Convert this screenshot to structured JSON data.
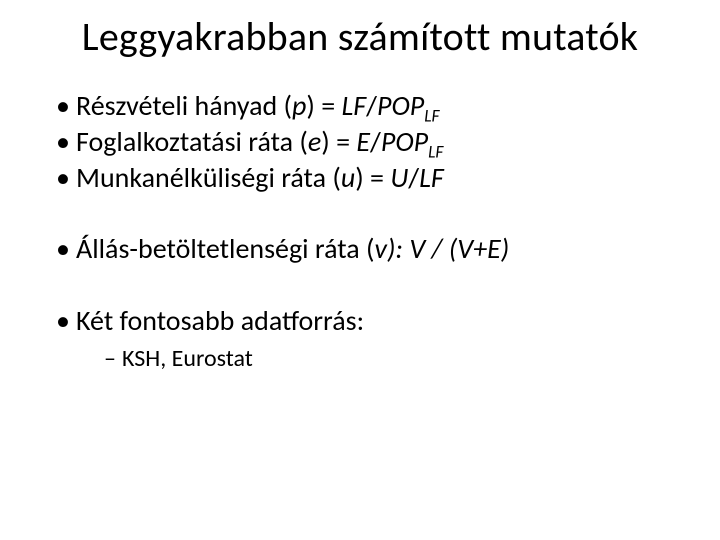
{
  "title": "Leggyakrabban számított mutatók",
  "bullets": {
    "b1_pre": "Részvételi hányad (",
    "b1_var": "p",
    "b1_mid1": ") = ",
    "b1_lf": "LF",
    "b1_slash": "/",
    "b1_pop": "POP",
    "b1_sub": "LF",
    "b2_pre": "Foglalkoztatási ráta (",
    "b2_var": "e",
    "b2_mid1": ") = ",
    "b2_e": "E",
    "b2_slash": "/",
    "b2_pop": "POP",
    "b2_sub": "LF",
    "b3_pre": "Munkanélküliségi ráta (",
    "b3_var": "u",
    "b3_mid1": ") = ",
    "b3_u": "U",
    "b3_slash": "/",
    "b3_lf": "LF",
    "b4_pre": "Állás-betöltetlenségi ráta (",
    "b4_var": "v",
    "b4_mid1": "):",
    "b4_sp": " ",
    "b4_v": "V",
    "b4_mid2": " / (",
    "b4_v2": "V",
    "b4_plus": "+",
    "b4_e": "E",
    "b4_close": ")",
    "b5": "Két fontosabb adatforrás:",
    "b5_sub1": "KSH, Eurostat"
  },
  "style": {
    "background_color": "#ffffff",
    "text_color": "#000000",
    "title_fontsize": 40,
    "bullet_fontsize": 28,
    "subbullet_fontsize": 24,
    "font_family": "Calibri"
  }
}
